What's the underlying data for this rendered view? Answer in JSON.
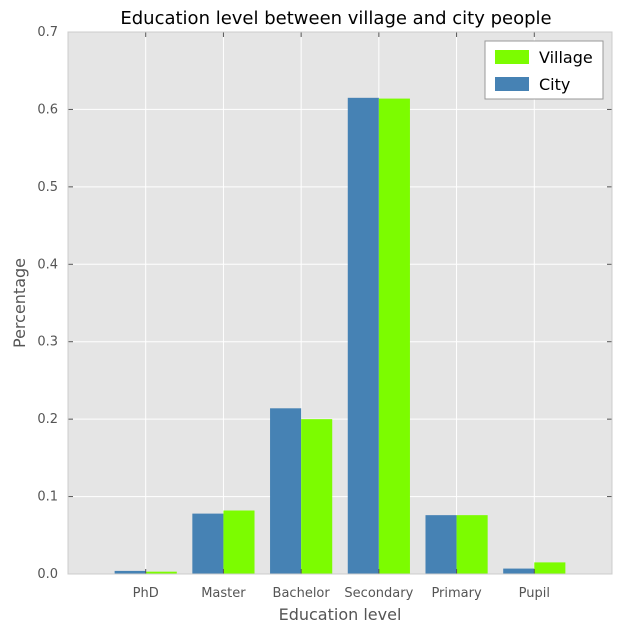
{
  "chart_data": {
    "type": "bar",
    "title": "Education level between village and city people",
    "xlabel": "Education level",
    "ylabel": "Percentage",
    "categories": [
      "PhD",
      "Master",
      "Bachelor",
      "Secondary",
      "Primary",
      "Pupil"
    ],
    "series": [
      {
        "name": "City",
        "color": "#4682b4",
        "values": [
          0.004,
          0.078,
          0.214,
          0.615,
          0.076,
          0.007
        ]
      },
      {
        "name": "Village",
        "color": "#7cfc00",
        "values": [
          0.003,
          0.082,
          0.2,
          0.614,
          0.076,
          0.015
        ]
      }
    ],
    "legend_order": [
      "Village",
      "City"
    ],
    "ylim": [
      0,
      0.7
    ],
    "yticks": [
      0.0,
      0.1,
      0.2,
      0.3,
      0.4,
      0.5,
      0.6,
      0.7
    ],
    "ytick_labels": [
      "0.0",
      "0.1",
      "0.2",
      "0.3",
      "0.4",
      "0.5",
      "0.6",
      "0.7"
    ],
    "grid": true,
    "legend_position": "top-right",
    "background_color": "#e5e5e5",
    "grid_color": "#ffffff"
  }
}
